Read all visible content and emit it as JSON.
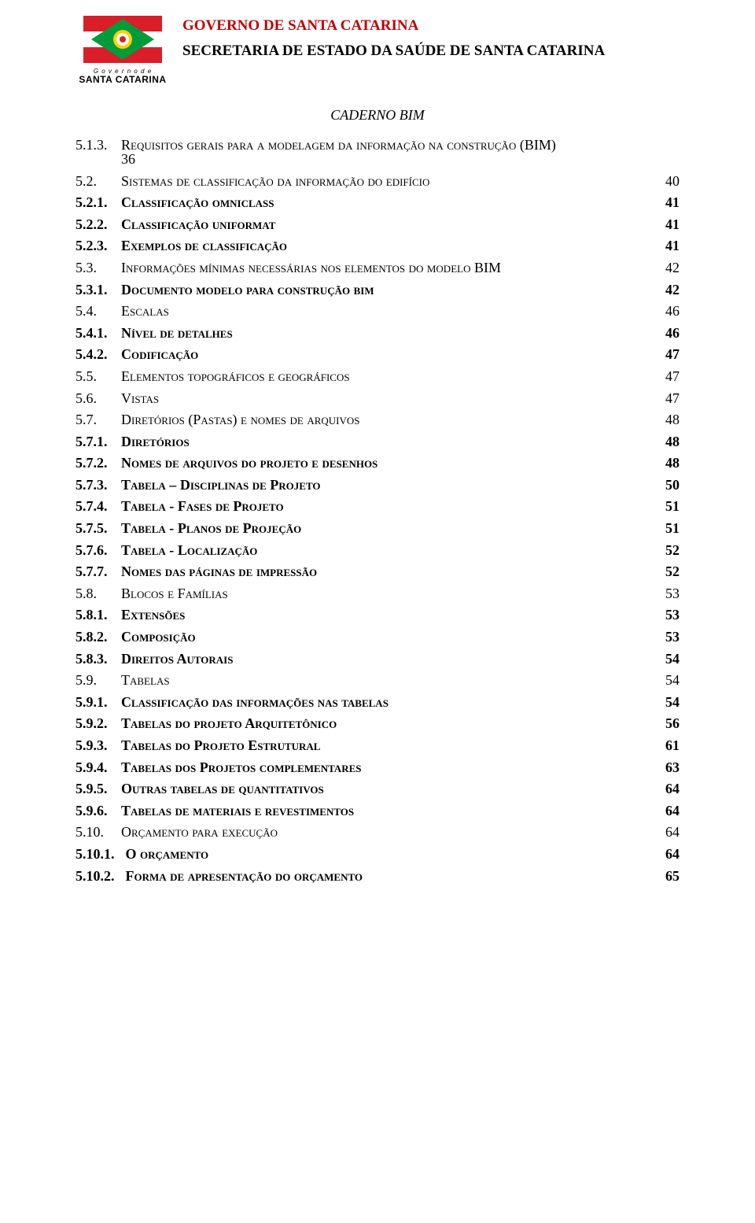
{
  "header": {
    "title1": "GOVERNO DE SANTA CATARINA",
    "title2": "SECRETARIA DE ESTADO DA SAÚDE DE SANTA CATARINA",
    "logo_gov": "G o v e r n o  d e",
    "logo_sc": "SANTA CATARINA",
    "caderno": "CADERNO BIM"
  },
  "flag": {
    "red": "#d91e2a",
    "white": "#ffffff",
    "green": "#009b3a",
    "yellow": "#ffd100"
  },
  "toc": [
    {
      "num": "5.1.3.",
      "title_a": "R",
      "title_b": "equisitos gerais para a modelagem da informação na construção ",
      "title_c": "(BIM)",
      "wrap": "36"
    },
    {
      "num": "5.2.",
      "title_a": "S",
      "title_b": "istemas de classificação da informação do edifício",
      "page": "40"
    },
    {
      "num": "5.2.1.",
      "title_a": "C",
      "title_b": "lassificação omniclass",
      "bold": true,
      "page": "41"
    },
    {
      "num": "5.2.2.",
      "title_a": "C",
      "title_b": "lassificação uniformat",
      "bold": true,
      "page": "41"
    },
    {
      "num": "5.2.3.",
      "title_a": "E",
      "title_b": "xemplos de classificação",
      "bold": true,
      "page": "41"
    },
    {
      "num": "5.3.",
      "title_a": "I",
      "title_b": "nformações mínimas necessárias nos elementos do modelo ",
      "title_c": "BIM",
      "page": "42"
    },
    {
      "num": "5.3.1.",
      "title_a": "D",
      "title_b": "ocumento modelo para construção bim",
      "bold": true,
      "page": "42"
    },
    {
      "num": "5.4.",
      "title_a": "E",
      "title_b": "scalas",
      "page": "46"
    },
    {
      "num": "5.4.1.",
      "title_a": "N",
      "title_b": "ível de detalhes",
      "bold": true,
      "page": "46"
    },
    {
      "num": "5.4.2.",
      "title_a": "C",
      "title_b": "odificação",
      "bold": true,
      "page": "47"
    },
    {
      "num": "5.5.",
      "title_a": "E",
      "title_b": "lementos topográficos e geográficos",
      "page": "47"
    },
    {
      "num": "5.6.",
      "title_a": "V",
      "title_b": "istas",
      "page": "47"
    },
    {
      "num": "5.7.",
      "title_a": "D",
      "title_b": "iretórios ",
      "title_c": "(P",
      "title_d": "astas",
      "title_e": ") e nomes de arquivos",
      "page": "48"
    },
    {
      "num": "5.7.1.",
      "title_a": "D",
      "title_b": "iretórios",
      "bold": true,
      "page": "48"
    },
    {
      "num": "5.7.2.",
      "title_a": "N",
      "title_b": "omes de arquivos do projeto e desenhos",
      "bold": true,
      "page": "48"
    },
    {
      "num": "5.7.3.",
      "title_a": "T",
      "title_b": "abela – ",
      "title_c": "D",
      "title_d": "isciplinas de ",
      "title_e": "P",
      "title_f": "rojeto",
      "bold": true,
      "page": "50"
    },
    {
      "num": "5.7.4.",
      "title_a": "T",
      "title_b": "abela - ",
      "title_c": "F",
      "title_d": "ases de ",
      "title_e": "P",
      "title_f": "rojeto",
      "bold": true,
      "page": "51"
    },
    {
      "num": "5.7.5.",
      "title_a": "T",
      "title_b": "abela - ",
      "title_c": "P",
      "title_d": "lanos de ",
      "title_e": "P",
      "title_f": "rojeção",
      "bold": true,
      "page": "51"
    },
    {
      "num": "5.7.6.",
      "title_a": "T",
      "title_b": "abela - ",
      "title_c": "L",
      "title_d": "ocalização",
      "bold": true,
      "page": "52"
    },
    {
      "num": "5.7.7.",
      "title_a": "N",
      "title_b": "omes das páginas de impressão",
      "bold": true,
      "page": "52"
    },
    {
      "num": "5.8.",
      "title_a": "B",
      "title_b": "locos e ",
      "title_c": "F",
      "title_d": "amílias",
      "page": "53"
    },
    {
      "num": "5.8.1.",
      "title_a": "E",
      "title_b": "xtensões",
      "bold": true,
      "page": "53"
    },
    {
      "num": "5.8.2.",
      "title_a": "C",
      "title_b": "omposição",
      "bold": true,
      "page": "53"
    },
    {
      "num": "5.8.3.",
      "title_a": "D",
      "title_b": "ireitos ",
      "title_c": "A",
      "title_d": "utorais",
      "bold": true,
      "page": "54"
    },
    {
      "num": "5.9.",
      "title_a": "T",
      "title_b": "abelas",
      "page": "54"
    },
    {
      "num": "5.9.1.",
      "title_a": "C",
      "title_b": "lassificação das informações nas tabelas",
      "bold": true,
      "page": "54"
    },
    {
      "num": "5.9.2.",
      "title_a": "T",
      "title_b": "abelas do projeto ",
      "title_c": "A",
      "title_d": "rquitetônico",
      "bold": true,
      "page": "56"
    },
    {
      "num": "5.9.3.",
      "title_a": "T",
      "title_b": "abelas do ",
      "title_c": "P",
      "title_d": "rojeto ",
      "title_e": "E",
      "title_f": "strutural",
      "bold": true,
      "page": "61"
    },
    {
      "num": "5.9.4.",
      "title_a": "T",
      "title_b": "abelas dos ",
      "title_c": "P",
      "title_d": "rojetos complementares",
      "bold": true,
      "page": "63"
    },
    {
      "num": "5.9.5.",
      "title_a": "O",
      "title_b": "utras tabelas de quantitativos",
      "bold": true,
      "page": "64"
    },
    {
      "num": "5.9.6.",
      "title_a": "T",
      "title_b": "abelas de materiais e revestimentos",
      "bold": true,
      "page": "64"
    },
    {
      "num": "5.10.",
      "title_a": "O",
      "title_b": "rçamento para execução",
      "page": "64"
    },
    {
      "num": "5.10.1.",
      "title_a": "O ",
      "title_b": "orçamento",
      "bold": true,
      "page": "64"
    },
    {
      "num": "5.10.2.",
      "title_a": "F",
      "title_b": "orma de apresentação do orçamento",
      "bold": true,
      "page": "65"
    }
  ]
}
